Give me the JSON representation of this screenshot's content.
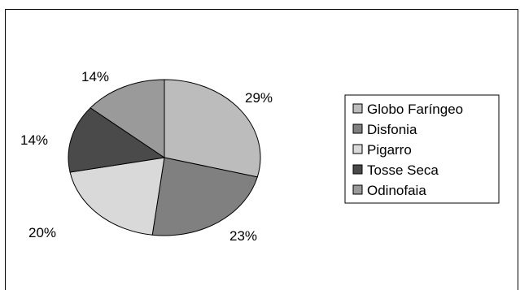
{
  "chart_data": {
    "type": "pie",
    "title": "",
    "slices": [
      {
        "label": "Globo Faríngeo",
        "value": 29,
        "display": "29%",
        "color": "#bcbcbc"
      },
      {
        "label": "Disfonia",
        "value": 23,
        "display": "23%",
        "color": "#808080"
      },
      {
        "label": "Pigarro",
        "value": 20,
        "display": "20%",
        "color": "#d9d9d9"
      },
      {
        "label": "Tosse Seca",
        "value": 14,
        "display": "14%",
        "color": "#4a4a4a"
      },
      {
        "label": "Odinofaia",
        "value": 14,
        "display": "14%",
        "color": "#9a9a9a"
      }
    ],
    "legend_position": "right"
  }
}
